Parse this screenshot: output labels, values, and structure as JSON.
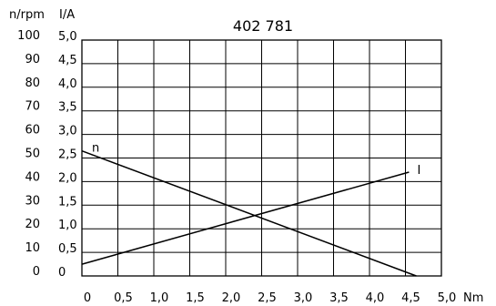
{
  "chart_data": {
    "type": "line",
    "title": "402 781",
    "xlabel": "Nm",
    "ylabel_left": "n/rpm",
    "ylabel_right": "I/A",
    "x_ticks": [
      "0",
      "0,5",
      "1,0",
      "1,5",
      "2,0",
      "2,5",
      "3,0",
      "3,5",
      "4,0",
      "4,5",
      "5,0"
    ],
    "y_ticks_rpm": [
      "0",
      "10",
      "20",
      "30",
      "40",
      "50",
      "60",
      "70",
      "80",
      "90",
      "100"
    ],
    "y_ticks_current": [
      "0",
      "0,5",
      "1,0",
      "1,5",
      "2,0",
      "2,5",
      "3,0",
      "3,5",
      "4,0",
      "4,5",
      "5,0"
    ],
    "xlim": [
      0,
      5
    ],
    "ylim_rpm": [
      0,
      100
    ],
    "ylim_current": [
      0,
      5
    ],
    "grid": true,
    "series": [
      {
        "name": "n",
        "axis": "rpm",
        "x": [
          0,
          4.65
        ],
        "y": [
          53,
          0
        ]
      },
      {
        "name": "I",
        "axis": "current",
        "x": [
          0,
          4.55
        ],
        "y": [
          0.25,
          2.2
        ]
      }
    ]
  }
}
